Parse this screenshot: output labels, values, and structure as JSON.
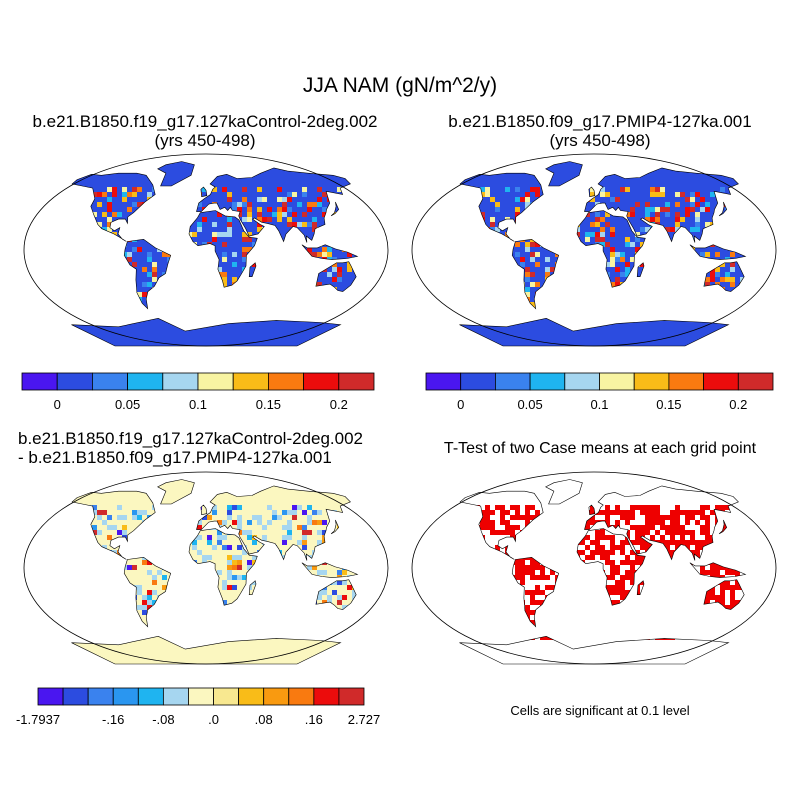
{
  "main_title": "JJA NAM (gN/m^2/y)",
  "panels": [
    {
      "id": "p1",
      "title_line1": "b.e21.B1850.f19_g17.127kaControl-2deg.002",
      "title_line2": "(yrs 450-498)"
    },
    {
      "id": "p2",
      "title_line1": "b.e21.B1850.f09_g17.PMIP4-127ka.001",
      "title_line2": "(yrs 450-498)"
    },
    {
      "id": "p3",
      "title_line1": "b.e21.B1850.f19_g17.127kaControl-2deg.002",
      "title_line2": "- b.e21.B1850.f09_g17.PMIP4-127ka.001"
    },
    {
      "id": "p4",
      "title_line1": "T-Test of two Case means at each grid point",
      "title_line2": ""
    }
  ],
  "colorbar_main": {
    "colors": [
      "#4a16f0",
      "#2c4ce0",
      "#3a82ee",
      "#1fb4f0",
      "#a6d6f0",
      "#f8f4a2",
      "#f9bc18",
      "#f97a10",
      "#ec0c0c",
      "#d02a2a"
    ],
    "tick_labels": [
      "0",
      "0.05",
      "0.1",
      "0.15",
      "0.2"
    ]
  },
  "colorbar_diff": {
    "colors": [
      "#4a16f0",
      "#2c4ce0",
      "#3a82ee",
      "#2a96f0",
      "#1fb4f0",
      "#a6d6f0",
      "#fbf7c0",
      "#f8e890",
      "#f9bc18",
      "#f99a10",
      "#f97a10",
      "#ec0c0c",
      "#d02a2a"
    ],
    "tick_labels": [
      "-1.7937",
      "-.16",
      "-.08",
      ".0",
      ".08",
      ".16",
      "2.727"
    ]
  },
  "significance_note": "Cells are significant at 0.1 level"
}
